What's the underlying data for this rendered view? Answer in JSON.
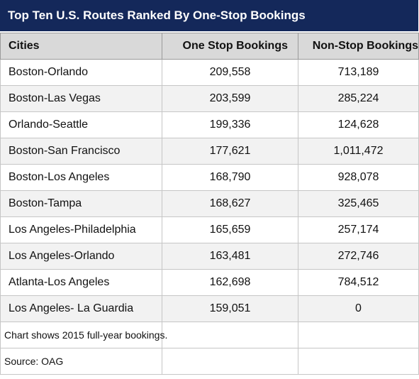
{
  "title": "Top Ten U.S. Routes Ranked By One-Stop Bookings",
  "colors": {
    "title_bg": "#14285a",
    "header_bg": "#d9d9d9",
    "alt_row": "#f2f2f2"
  },
  "chart_data": {
    "type": "table",
    "title": "Top Ten U.S. Routes Ranked By One-Stop Bookings",
    "columns": [
      "Cities",
      "One Stop Bookings",
      "Non-Stop Bookings"
    ],
    "rows": [
      [
        "Boston-Orlando",
        "209,558",
        "713,189"
      ],
      [
        "Boston-Las Vegas",
        "203,599",
        "285,224"
      ],
      [
        "Orlando-Seattle",
        "199,336",
        "124,628"
      ],
      [
        "Boston-San Francisco",
        "177,621",
        "1,011,472"
      ],
      [
        "Boston-Los Angeles",
        "168,790",
        "928,078"
      ],
      [
        "Boston-Tampa",
        "168,627",
        "325,465"
      ],
      [
        "Los Angeles-Philadelphia",
        "165,659",
        "257,174"
      ],
      [
        "Los Angeles-Orlando",
        "163,481",
        "272,746"
      ],
      [
        "Atlanta-Los Angeles",
        "162,698",
        "784,512"
      ],
      [
        "Los Angeles- La Guardia",
        "159,051",
        "0"
      ]
    ],
    "notes": [
      "Chart shows 2015 full-year bookings.",
      "Source: OAG"
    ]
  }
}
